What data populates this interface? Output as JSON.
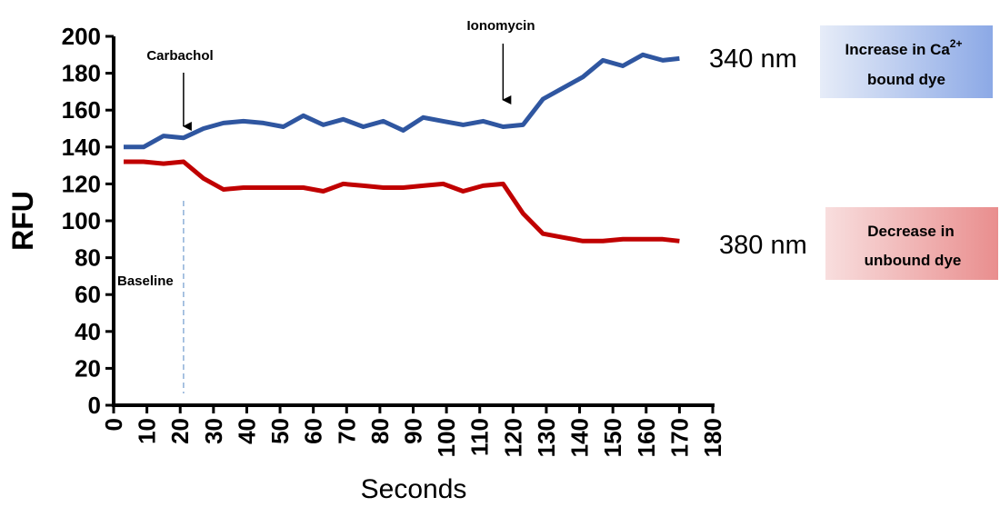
{
  "chart_data": {
    "type": "line",
    "xlabel": "Seconds",
    "ylabel": "RFU",
    "xlim": [
      0,
      180
    ],
    "ylim": [
      0,
      200
    ],
    "x_ticks": [
      0,
      10,
      20,
      30,
      40,
      50,
      60,
      70,
      80,
      90,
      100,
      110,
      120,
      130,
      140,
      150,
      160,
      170,
      180
    ],
    "y_ticks": [
      0,
      20,
      40,
      60,
      80,
      100,
      120,
      140,
      160,
      180,
      200
    ],
    "grid": false,
    "series": [
      {
        "name": "340 nm",
        "color": "#2f56a0",
        "x": [
          3,
          9,
          15,
          21,
          27,
          33,
          39,
          45,
          51,
          57,
          63,
          69,
          75,
          81,
          87,
          93,
          99,
          105,
          111,
          117,
          123,
          129,
          135,
          141,
          147,
          153,
          159,
          165,
          170
        ],
        "y": [
          140,
          140,
          146,
          145,
          150,
          153,
          154,
          153,
          151,
          157,
          152,
          155,
          151,
          154,
          149,
          156,
          154,
          152,
          154,
          151,
          152,
          166,
          172,
          178,
          187,
          184,
          190,
          187,
          188
        ]
      },
      {
        "name": "380 nm",
        "color": "#c00000",
        "x": [
          3,
          9,
          15,
          21,
          27,
          33,
          39,
          45,
          51,
          57,
          63,
          69,
          75,
          81,
          87,
          93,
          99,
          105,
          111,
          117,
          123,
          129,
          135,
          141,
          147,
          153,
          159,
          165,
          170
        ],
        "y": [
          132,
          132,
          131,
          132,
          123,
          117,
          118,
          118,
          118,
          118,
          116,
          120,
          119,
          118,
          118,
          119,
          120,
          116,
          119,
          120,
          104,
          93,
          91,
          89,
          89,
          90,
          90,
          90,
          89
        ]
      }
    ],
    "annotations": [
      {
        "label": "Carbachol",
        "x": 21,
        "type": "arrow"
      },
      {
        "label": "Ionomycin",
        "x": 117,
        "type": "arrow"
      },
      {
        "label": "Baseline",
        "x": 21,
        "type": "dashed-line"
      }
    ],
    "series_labels": {
      "s340": "340 nm",
      "s380": "380 nm"
    },
    "boxes": {
      "increase_line1_main": "Increase in Ca",
      "increase_line1_sup": "2+",
      "increase_line2": "bound dye",
      "decrease_line1": "Decrease in",
      "decrease_line2": "unbound dye"
    },
    "colors": {
      "increase_box_left": "#e6ecf8",
      "increase_box_right": "#8ca9e6",
      "decrease_box_left": "#f8dede",
      "decrease_box_right": "#e98e8e",
      "baseline_line": "#8eb0d8"
    }
  }
}
